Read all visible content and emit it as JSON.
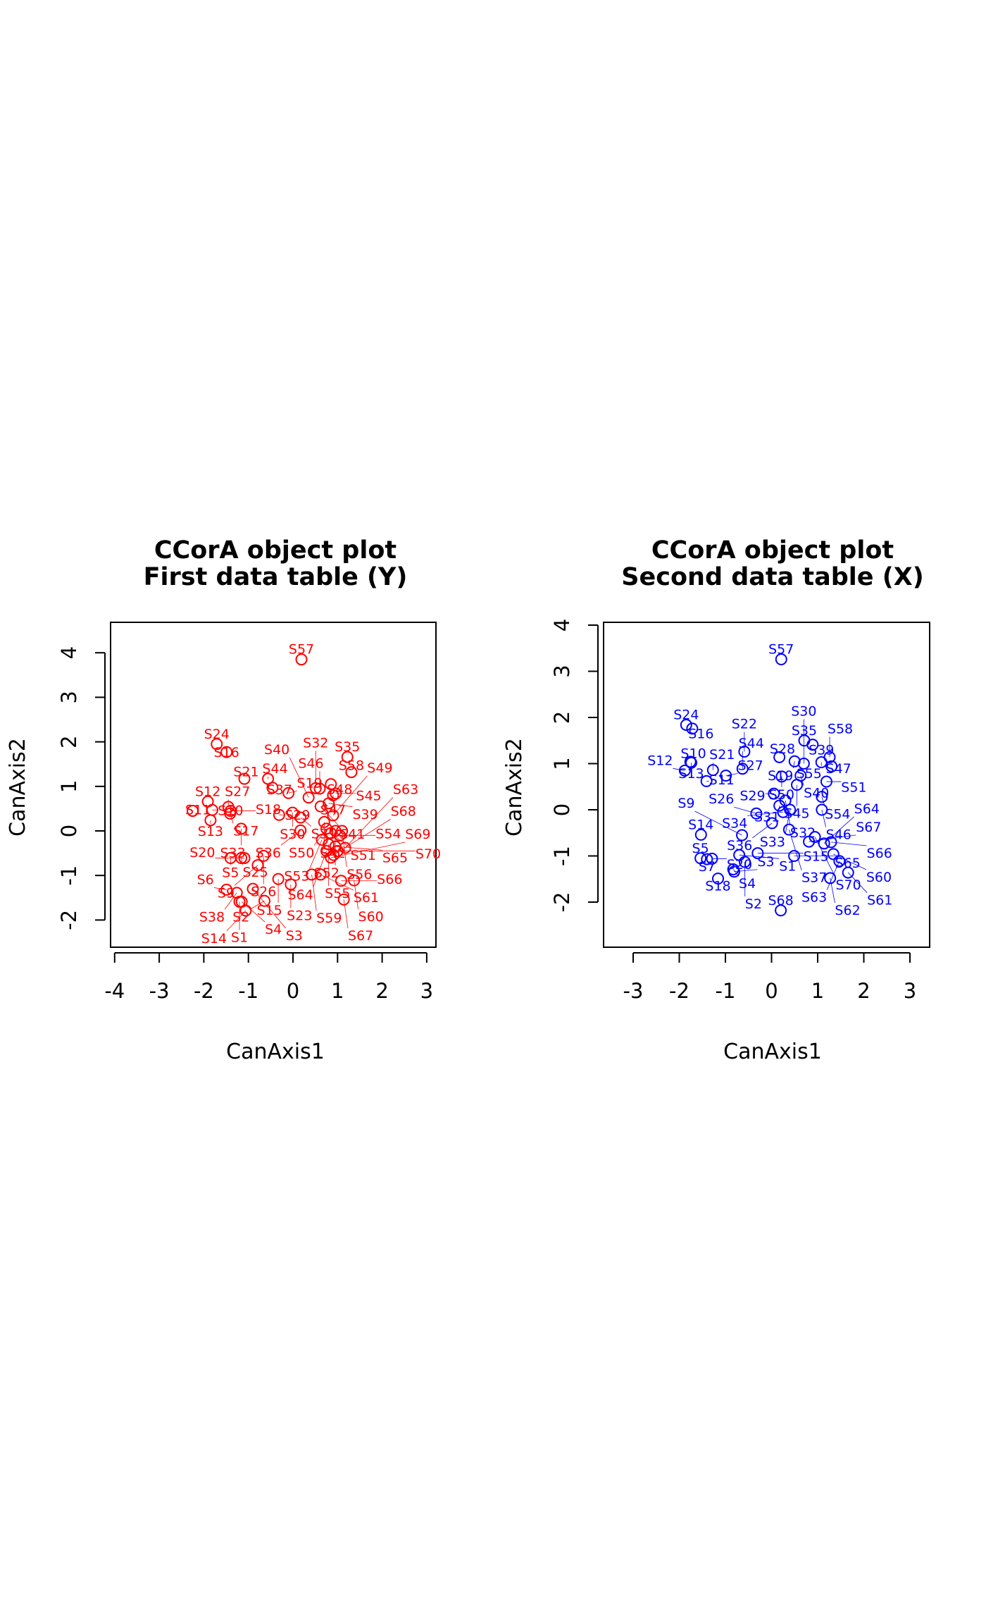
{
  "chart_data": [
    {
      "type": "scatter",
      "title": [
        "CCorA object plot",
        "First data table (Y)"
      ],
      "xlabel": "CanAxis1",
      "ylabel": "CanAxis2",
      "xlim": [
        -4,
        3
      ],
      "ylim": [
        -2,
        4
      ],
      "xticks": [
        -4,
        -3,
        -2,
        -1,
        0,
        1,
        2,
        3
      ],
      "yticks": [
        -2,
        -1,
        0,
        1,
        2,
        3,
        4
      ],
      "color": "#ff0000",
      "grid": false,
      "points": [
        [
          "S57",
          0.19,
          3.85
        ],
        [
          "S24",
          -1.71,
          1.95
        ],
        [
          "S16",
          -1.49,
          1.77
        ],
        [
          "S35",
          1.22,
          1.66
        ],
        [
          "S58",
          1.31,
          1.32
        ],
        [
          "S21",
          -1.09,
          1.17
        ],
        [
          "S44",
          -0.56,
          1.17
        ],
        [
          "S37",
          -0.46,
          0.97
        ],
        [
          "S19",
          -0.1,
          0.85
        ],
        [
          "S48",
          0.85,
          1.05
        ],
        [
          "S46",
          0.6,
          0.95
        ],
        [
          "S47",
          0.9,
          0.8
        ],
        [
          "S45",
          0.96,
          0.84
        ],
        [
          "S12",
          -1.91,
          0.66
        ],
        [
          "S11",
          -2.25,
          0.45
        ],
        [
          "S10",
          -1.81,
          0.47
        ],
        [
          "S13",
          -1.85,
          0.24
        ],
        [
          "S27",
          -1.45,
          0.54
        ],
        [
          "S17",
          -1.41,
          0.39
        ],
        [
          "S18",
          -1.4,
          0.45
        ],
        [
          "S29",
          -0.31,
          0.36
        ],
        [
          "S30",
          -0.01,
          0.41
        ],
        [
          "S31",
          0.17,
          0.3
        ],
        [
          "S32",
          0.51,
          0.96
        ],
        [
          "S39",
          0.8,
          0.62
        ],
        [
          "S40",
          0.35,
          0.75
        ],
        [
          "S41",
          0.62,
          0.55
        ],
        [
          "S42",
          0.7,
          0.2
        ],
        [
          "S49",
          0.9,
          0.35
        ],
        [
          "S50",
          0.75,
          0.05
        ],
        [
          "S51",
          0.85,
          -0.05
        ],
        [
          "S52",
          0.95,
          0.0
        ],
        [
          "S53",
          0.65,
          -0.2
        ],
        [
          "S54",
          1.05,
          -0.1
        ],
        [
          "S56",
          1.1,
          0.0
        ],
        [
          "S55",
          0.8,
          -0.3
        ],
        [
          "S64",
          0.75,
          -0.45
        ],
        [
          "S65",
          0.95,
          -0.35
        ],
        [
          "S36",
          0.17,
          0.01
        ],
        [
          "S33",
          -1.16,
          0.05
        ],
        [
          "S5",
          -1.4,
          -0.61
        ],
        [
          "S25",
          -1.16,
          -0.61
        ],
        [
          "S20",
          -1.09,
          -0.61
        ],
        [
          "S26",
          -0.66,
          -0.56
        ],
        [
          "S9",
          -0.79,
          -0.77
        ],
        [
          "S15",
          -0.33,
          -1.08
        ],
        [
          "S23",
          -0.05,
          -1.2
        ],
        [
          "S2",
          -0.64,
          -1.57
        ],
        [
          "S6",
          -1.49,
          -1.32
        ],
        [
          "S38",
          -1.26,
          -1.39
        ],
        [
          "S1",
          -1.2,
          -1.59
        ],
        [
          "S4",
          -1.15,
          -1.59
        ],
        [
          "S14",
          -1.06,
          -1.79
        ],
        [
          "S3",
          -0.9,
          -1.3
        ],
        [
          "S59",
          0.42,
          -0.98
        ],
        [
          "S61",
          0.62,
          -0.98
        ],
        [
          "S66",
          1.08,
          -1.12
        ],
        [
          "S60",
          1.37,
          -1.11
        ],
        [
          "S67",
          1.14,
          -1.54
        ],
        [
          "S68",
          0.91,
          -0.54
        ],
        [
          "S63",
          1.17,
          -0.38
        ],
        [
          "S69",
          0.85,
          -0.6
        ],
        [
          "S70",
          1.0,
          -0.45
        ]
      ]
    },
    {
      "type": "scatter",
      "title": [
        "CCorA object plot",
        "Second data table (X)"
      ],
      "xlabel": "CanAxis1",
      "ylabel": "CanAxis2",
      "xlim": [
        -3,
        3
      ],
      "ylim": [
        -2,
        4
      ],
      "xticks": [
        -3,
        -2,
        -1,
        0,
        1,
        2,
        3
      ],
      "yticks": [
        -2,
        -1,
        0,
        1,
        2,
        3,
        4
      ],
      "color": "#0000ff",
      "grid": false,
      "points": [
        [
          "S57",
          0.21,
          3.26
        ],
        [
          "S68",
          0.2,
          -2.18
        ],
        [
          "S24",
          -1.85,
          1.84
        ],
        [
          "S16",
          -1.72,
          1.76
        ],
        [
          "S35",
          0.71,
          1.5
        ],
        [
          "S39",
          0.89,
          1.41
        ],
        [
          "S58",
          1.26,
          1.14
        ],
        [
          "S47",
          1.3,
          0.94
        ],
        [
          "S55",
          1.08,
          1.03
        ],
        [
          "S10",
          -1.76,
          1.04
        ],
        [
          "S13",
          -1.74,
          1.02
        ],
        [
          "S12",
          -1.88,
          0.85
        ],
        [
          "S21",
          -1.27,
          0.86
        ],
        [
          "S11",
          -1.41,
          0.62
        ],
        [
          "S27",
          -0.99,
          0.74
        ],
        [
          "S44",
          -0.63,
          0.89
        ],
        [
          "S22",
          -0.59,
          1.26
        ],
        [
          "S28",
          0.17,
          1.14
        ],
        [
          "S19",
          0.5,
          1.05
        ],
        [
          "S30",
          0.7,
          1.0
        ],
        [
          "S50",
          0.22,
          0.72
        ],
        [
          "S40",
          0.63,
          0.74
        ],
        [
          "S51",
          1.19,
          0.61
        ],
        [
          "S45",
          0.55,
          0.54
        ],
        [
          "S54",
          1.09,
          0.28
        ],
        [
          "S29",
          0.05,
          0.35
        ],
        [
          "S31",
          0.17,
          0.09
        ],
        [
          "S32",
          0.3,
          0.2
        ],
        [
          "S33",
          0.4,
          0.0
        ],
        [
          "S46",
          1.09,
          0.0
        ],
        [
          "S34",
          0.25,
          -0.05
        ],
        [
          "S26",
          -0.33,
          -0.08
        ],
        [
          "S36",
          0.01,
          -0.29
        ],
        [
          "S14",
          -1.53,
          -0.54
        ],
        [
          "S5",
          -1.54,
          -1.05
        ],
        [
          "S7",
          -1.4,
          -1.07
        ],
        [
          "S20",
          -1.29,
          -1.06
        ],
        [
          "S18",
          -1.16,
          -1.49
        ],
        [
          "S4",
          -0.83,
          -1.29
        ],
        [
          "S3",
          -0.81,
          -1.34
        ],
        [
          "S1",
          -0.7,
          -0.98
        ],
        [
          "S2",
          -0.58,
          -1.13
        ],
        [
          "S15",
          -0.3,
          -0.94
        ],
        [
          "S9",
          -0.64,
          -0.55
        ],
        [
          "S37",
          0.38,
          -0.43
        ],
        [
          "S65",
          0.49,
          -1.0
        ],
        [
          "S67",
          0.81,
          -0.69
        ],
        [
          "S70",
          0.94,
          -0.59
        ],
        [
          "S64",
          1.14,
          -0.73
        ],
        [
          "S66",
          1.29,
          -0.7
        ],
        [
          "S60",
          1.34,
          -0.96
        ],
        [
          "S63",
          1.47,
          -1.11
        ],
        [
          "S62",
          1.27,
          -1.48
        ],
        [
          "S61",
          1.66,
          -1.36
        ]
      ]
    }
  ]
}
